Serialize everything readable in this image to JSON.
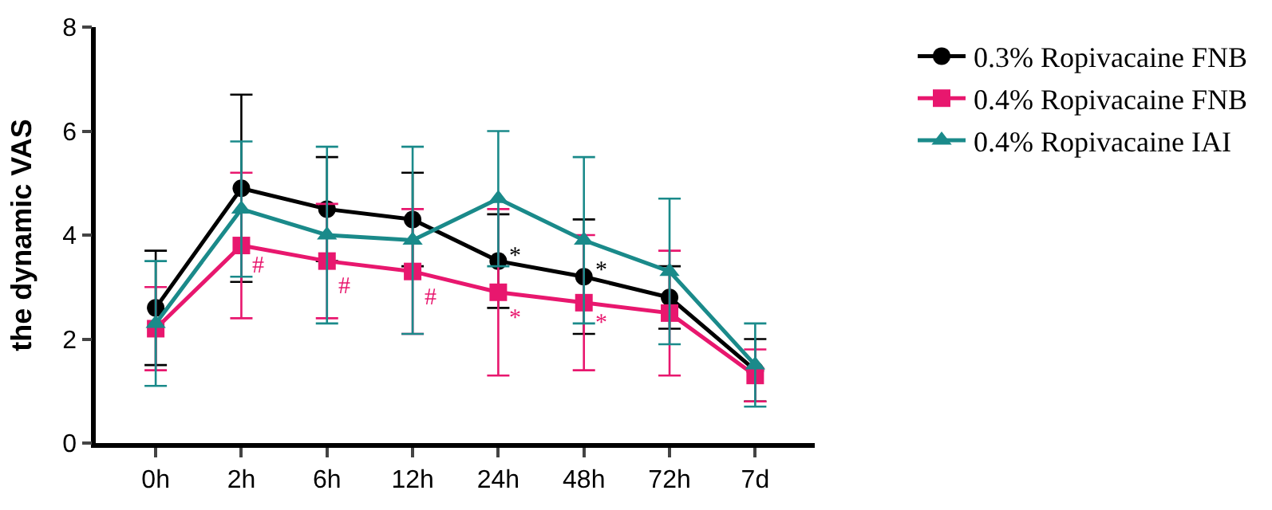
{
  "chart_data": {
    "type": "line",
    "ylabel": "the dynamic VAS",
    "categories": [
      "0h",
      "2h",
      "6h",
      "12h",
      "24h",
      "48h",
      "72h",
      "7d"
    ],
    "ylim": [
      0,
      8
    ],
    "yticks": [
      0,
      2,
      4,
      6,
      8
    ],
    "legend": "top right",
    "line_style": "solid",
    "series": [
      {
        "name": "0.3% Ropivacaine FNB",
        "color": "#000000",
        "marker": "circle",
        "values": [
          2.6,
          4.9,
          4.5,
          4.3,
          3.5,
          3.2,
          2.8,
          1.4
        ],
        "errors": [
          1.1,
          1.8,
          1.0,
          0.9,
          0.9,
          1.1,
          0.6,
          0.6
        ]
      },
      {
        "name": "0.4% Ropivacaine FNB",
        "color": "#e8176e",
        "marker": "square",
        "values": [
          2.2,
          3.8,
          3.5,
          3.3,
          2.9,
          2.7,
          2.5,
          1.3
        ],
        "errors": [
          0.8,
          1.4,
          1.1,
          1.2,
          1.6,
          1.3,
          1.2,
          0.5
        ]
      },
      {
        "name": "0.4% Ropivacaine IAI",
        "color": "#1a8a8a",
        "marker": "triangle",
        "values": [
          2.3,
          4.5,
          4.0,
          3.9,
          4.7,
          3.9,
          3.3,
          1.5
        ],
        "errors": [
          1.2,
          1.3,
          1.7,
          1.8,
          1.3,
          1.6,
          1.4,
          0.8
        ]
      }
    ],
    "annotations": [
      {
        "text": "#",
        "x": "2h",
        "y": 3.4
      },
      {
        "text": "#",
        "x": "6h",
        "y": 3.0
      },
      {
        "text": "#",
        "x": "12h",
        "y": 2.8
      },
      {
        "text": "*",
        "x": "24h",
        "y": 2.4
      },
      {
        "text": "*",
        "x": "48h",
        "y": 2.3
      },
      {
        "text": "*",
        "x": "24h",
        "y": 3.6
      },
      {
        "text": "*",
        "x": "48h",
        "y": 3.3
      }
    ]
  }
}
